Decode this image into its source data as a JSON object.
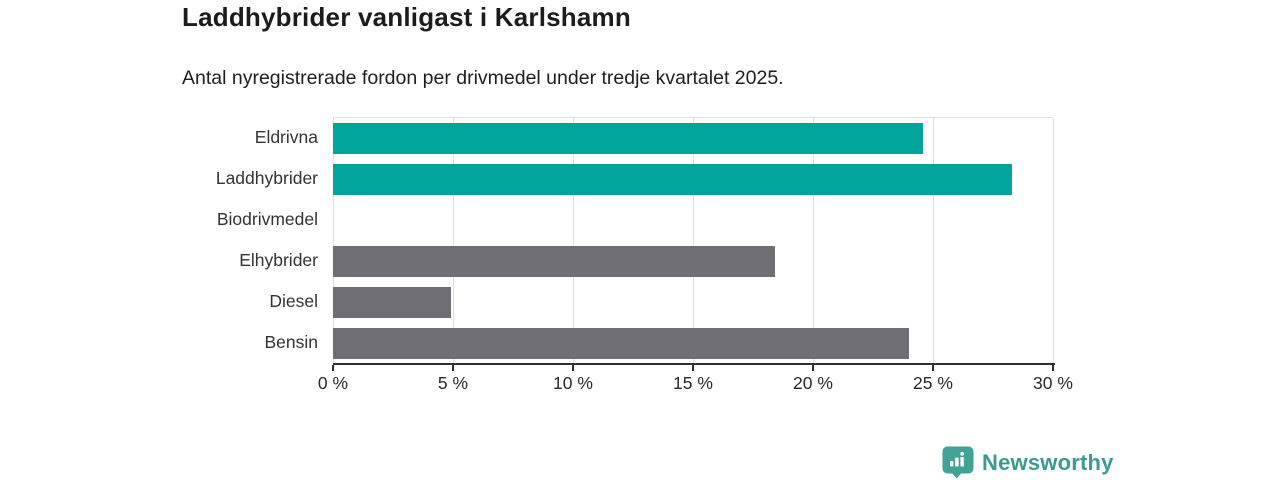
{
  "header": {
    "title": "Laddhybrider vanligast i Karlshamn",
    "subtitle": "Antal nyregistrerade fordon per drivmedel under tredje kvartalet 2025."
  },
  "chart_data": {
    "type": "bar",
    "orientation": "horizontal",
    "title": "Laddhybrider vanligast i Karlshamn",
    "subtitle": "Antal nyregistrerade fordon per drivmedel under tredje kvartalet 2025.",
    "categories": [
      "Eldrivna",
      "Laddhybrider",
      "Biodrivmedel",
      "Elhybrider",
      "Diesel",
      "Bensin"
    ],
    "values": [
      24.6,
      28.3,
      0,
      18.4,
      4.9,
      24.0
    ],
    "unit": "%",
    "bar_colors": [
      "#00a49b",
      "#00a49b",
      "#00a49b",
      "#6e6e73",
      "#6e6e73",
      "#6e6e73"
    ],
    "xlim": [
      0,
      30
    ],
    "xticks": [
      0,
      5,
      10,
      15,
      20,
      25,
      30
    ],
    "xtick_labels": [
      "0 %",
      "5 %",
      "10 %",
      "15 %",
      "20 %",
      "25 %",
      "30 %"
    ],
    "grid": true,
    "legend": "none"
  },
  "colors": {
    "accent_teal": "#00a49b",
    "neutral_gray": "#6e6e73",
    "grid": "#e0e0e0",
    "axis": "#2f2f2f",
    "logo_teal": "#3b9a92"
  },
  "footer": {
    "brand": "Newsworthy",
    "logo_icon": "bar-chart-badge-icon"
  }
}
